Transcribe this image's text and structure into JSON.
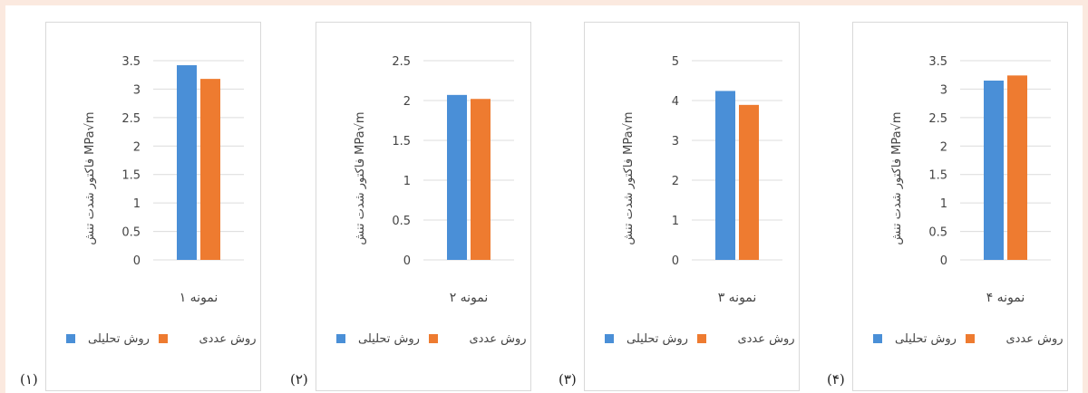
{
  "colors": {
    "analytical": "#4a8fd7",
    "numerical": "#ee7b30",
    "grid": "#dcdcdc",
    "text": "#444444"
  },
  "chart_data": [
    {
      "type": "bar",
      "ylabel": "فاکتور شدت تنش MPa√m",
      "categories": [
        "نمونه ۱"
      ],
      "ylim": [
        0,
        3.5
      ],
      "yticks": [
        "0",
        "0.5",
        "1",
        "1.5",
        "2",
        "2.5",
        "3",
        "3.5"
      ],
      "series": [
        {
          "name": "روش تحلیلی",
          "values": [
            3.42
          ]
        },
        {
          "name": "روش عددی",
          "values": [
            3.18
          ]
        }
      ],
      "legend": "bottom",
      "panel_label": "(۱)"
    },
    {
      "type": "bar",
      "ylabel": "فاکتور شدت تنش MPa√m",
      "categories": [
        "نمونه ۲"
      ],
      "ylim": [
        0,
        2.5
      ],
      "yticks": [
        "0",
        "0.5",
        "1",
        "1.5",
        "2",
        "2.5"
      ],
      "series": [
        {
          "name": "روش تحلیلی",
          "values": [
            2.07
          ]
        },
        {
          "name": "روش عددی",
          "values": [
            2.02
          ]
        }
      ],
      "legend": "bottom",
      "panel_label": "(۲)"
    },
    {
      "type": "bar",
      "ylabel": "فاکتور شدت تنش MPa√m",
      "categories": [
        "نمونه ۳"
      ],
      "ylim": [
        0,
        5
      ],
      "yticks": [
        "0",
        "1",
        "2",
        "3",
        "4",
        "5"
      ],
      "series": [
        {
          "name": "روش تحلیلی",
          "values": [
            4.24
          ]
        },
        {
          "name": "روش عددی",
          "values": [
            3.89
          ]
        }
      ],
      "legend": "bottom",
      "panel_label": "(۳)"
    },
    {
      "type": "bar",
      "ylabel": "فاکتور شدت تنش MPa√m",
      "categories": [
        "نمونه ۴"
      ],
      "ylim": [
        0,
        3.5
      ],
      "yticks": [
        "0",
        "0.5",
        "1",
        "1.5",
        "2",
        "2.5",
        "3",
        "3.5"
      ],
      "series": [
        {
          "name": "روش تحلیلی",
          "values": [
            3.15
          ]
        },
        {
          "name": "روش عددی",
          "values": [
            3.24
          ]
        }
      ],
      "legend": "bottom",
      "panel_label": "(۴)"
    }
  ]
}
